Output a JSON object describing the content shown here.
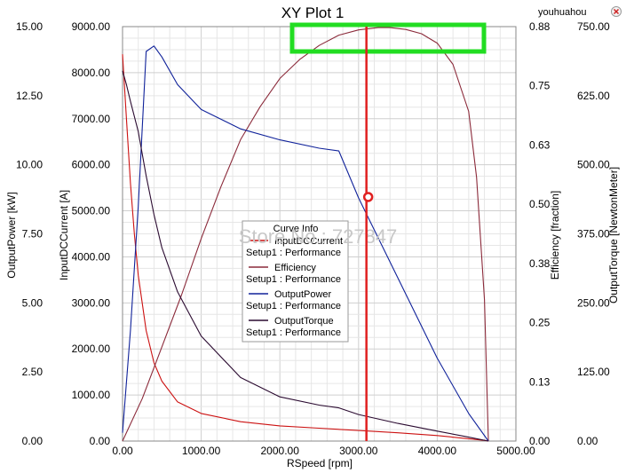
{
  "chart_data": {
    "type": "line",
    "title": "XY Plot 1",
    "corner_label": "youhuahou",
    "watermark": "Store No.: 727847",
    "xlabel": "RSpeed [rpm]",
    "xlim": [
      0,
      5000
    ],
    "x_ticks": [
      "0.00",
      "1000.00",
      "2000.00",
      "3000.00",
      "4000.00",
      "5000.00"
    ],
    "axes": {
      "outputpower": {
        "label": "OutputPower [kW]",
        "lim": [
          0,
          15
        ],
        "ticks": [
          "0.00",
          "2.50",
          "5.00",
          "7.50",
          "10.00",
          "12.50",
          "15.00"
        ]
      },
      "inputcurrent": {
        "label": "InputDCCurrent [A]",
        "lim": [
          0,
          9000
        ],
        "ticks": [
          "0.00",
          "1000.00",
          "2000.00",
          "3000.00",
          "4000.00",
          "5000.00",
          "6000.00",
          "7000.00",
          "8000.00",
          "9000.00"
        ]
      },
      "efficiency": {
        "label": "Efficiency [fraction]",
        "lim": [
          0,
          0.88
        ],
        "ticks": [
          "0.00",
          "0.13",
          "0.25",
          "0.38",
          "0.50",
          "0.63",
          "0.75",
          "0.88"
        ]
      },
      "torque": {
        "label": "OutputTorque [NewtonMeter]",
        "lim": [
          0,
          750
        ],
        "ticks": [
          "0.00",
          "125.00",
          "250.00",
          "375.00",
          "500.00",
          "625.00",
          "750.00"
        ]
      }
    },
    "grid": true,
    "legend": {
      "title": "Curve Info",
      "placement": "center",
      "entries": [
        {
          "name": "InputDCCurrent",
          "sub": "Setup1 : Performance",
          "color": "#cc1111"
        },
        {
          "name": "Efficiency",
          "sub": "Setup1 : Performance",
          "color": "#8b2a3a"
        },
        {
          "name": "OutputPower",
          "sub": "Setup1 : Performance",
          "color": "#10229a"
        },
        {
          "name": "OutputTorque",
          "sub": "Setup1 : Performance",
          "color": "#2a0a30"
        }
      ]
    },
    "marker": {
      "x": 3100,
      "y_current": 5300,
      "color": "#e02020"
    },
    "highlight_box": {
      "color": "#22dd22"
    },
    "series": [
      {
        "name": "InputDCCurrent",
        "axis": "inputcurrent",
        "color": "#cc1111",
        "x": [
          0,
          50,
          100,
          150,
          200,
          300,
          400,
          500,
          700,
          1000,
          1500,
          2000,
          2500,
          3000,
          3500,
          4000,
          4400,
          4600,
          4650
        ],
        "y": [
          8400,
          7000,
          5600,
          4500,
          3600,
          2400,
          1700,
          1300,
          850,
          600,
          420,
          330,
          280,
          230,
          180,
          120,
          50,
          15,
          0
        ]
      },
      {
        "name": "Efficiency",
        "axis": "efficiency",
        "color": "#8b2a3a",
        "x": [
          0,
          250,
          500,
          750,
          1000,
          1250,
          1500,
          1750,
          2000,
          2250,
          2500,
          2750,
          3000,
          3250,
          3400,
          3600,
          3800,
          4000,
          4200,
          4400,
          4500,
          4600,
          4650
        ],
        "y": [
          0,
          0.09,
          0.2,
          0.31,
          0.43,
          0.54,
          0.64,
          0.71,
          0.77,
          0.81,
          0.84,
          0.862,
          0.873,
          0.878,
          0.878,
          0.874,
          0.865,
          0.845,
          0.8,
          0.7,
          0.56,
          0.3,
          0
        ]
      },
      {
        "name": "OutputPower",
        "axis": "outputpower",
        "color": "#10229a",
        "x": [
          0,
          100,
          200,
          300,
          400,
          500,
          700,
          1000,
          1500,
          2000,
          2500,
          2750,
          3000,
          3500,
          4000,
          4400,
          4650
        ],
        "y": [
          0.3,
          4.0,
          8.5,
          14.1,
          14.3,
          13.9,
          12.9,
          12.0,
          11.3,
          10.9,
          10.6,
          10.5,
          8.8,
          5.9,
          3.0,
          1.0,
          0
        ]
      },
      {
        "name": "OutputTorque",
        "axis": "torque",
        "color": "#2a0a30",
        "x": [
          0,
          50,
          100,
          200,
          300,
          400,
          500,
          700,
          1000,
          1500,
          2000,
          2500,
          2750,
          3000,
          3500,
          4000,
          4400,
          4650
        ],
        "y": [
          670,
          645,
          615,
          560,
          480,
          410,
          350,
          270,
          190,
          115,
          80,
          65,
          60,
          48,
          32,
          18,
          7,
          0
        ]
      }
    ]
  }
}
